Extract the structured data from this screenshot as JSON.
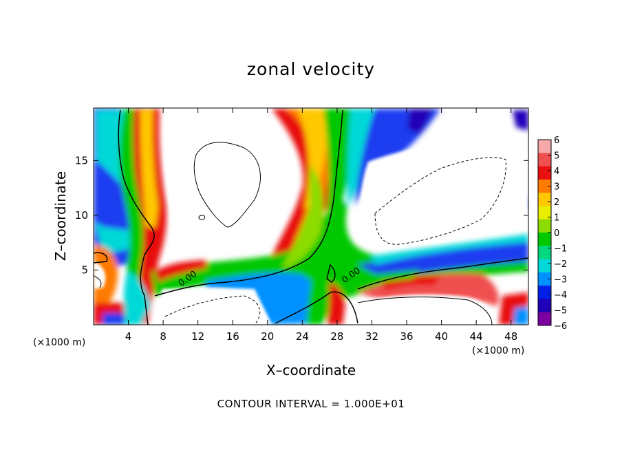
{
  "chart_data": {
    "type": "heatmap",
    "title": "zonal velocity",
    "xlabel": "X–coordinate",
    "ylabel": "Z–coordinate",
    "x_unit_left": "(×1000 m)",
    "x_unit_right": "(×1000 m)",
    "footer": "CONTOUR INTERVAL = 1.000E+01",
    "xlim": [
      0,
      50
    ],
    "ylim": [
      0,
      19.8
    ],
    "x_ticks": [
      4,
      8,
      12,
      16,
      20,
      24,
      28,
      32,
      36,
      40,
      44,
      48
    ],
    "x_tick_labels": [
      "4",
      "8",
      "12",
      "16",
      "20",
      "24",
      "28",
      "32",
      "36",
      "40",
      "44",
      "48"
    ],
    "y_ticks": [
      5,
      10,
      15
    ],
    "y_tick_labels": [
      "5",
      "10",
      "15"
    ],
    "colorbar": {
      "range": [
        -6,
        6
      ],
      "ticks": [
        6,
        5,
        4,
        3,
        2,
        1,
        0,
        -1,
        -2,
        -3,
        -4,
        -5,
        -6
      ],
      "tick_labels": [
        "6",
        "5",
        "4",
        "3",
        "2",
        "1",
        "0",
        "−1",
        "−2",
        "−3",
        "−4",
        "−5",
        "−6"
      ],
      "colors": [
        "#f7a8a8",
        "#f05050",
        "#e81010",
        "#ff7a00",
        "#ffc800",
        "#e8ee00",
        "#8cdc00",
        "#00c800",
        "#00d880",
        "#00d8d8",
        "#0090ff",
        "#0020e8",
        "#2000b8",
        "#7a00a0"
      ]
    },
    "contour_labels": [
      {
        "text": "0.00",
        "x": 11,
        "y": 4
      },
      {
        "text": "0.00",
        "x": 29.8,
        "y": 4.3
      }
    ]
  }
}
